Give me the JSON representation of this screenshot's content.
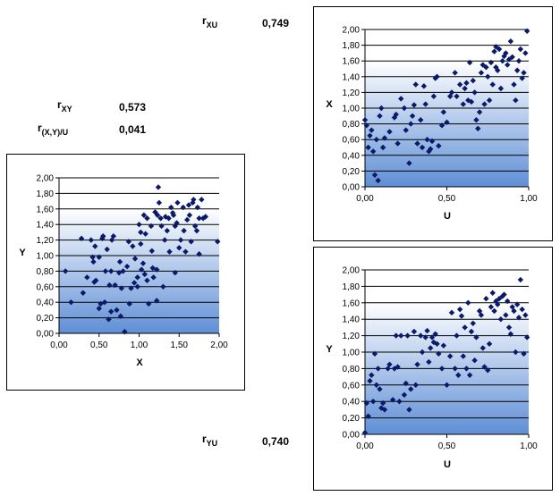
{
  "stats": {
    "rxu": {
      "label_main": "r",
      "label_sub": "XU",
      "value": "0,749"
    },
    "rxy": {
      "label_main": "r",
      "label_sub": "XY",
      "value": "0,573"
    },
    "rxyu": {
      "label_main": "r",
      "label_sub": "(X,Y)/U",
      "value": "0,041"
    },
    "ryu": {
      "label_main": "r",
      "label_sub": "YU",
      "value": "0,740"
    }
  },
  "colors": {
    "marker": "#0a1a6a",
    "grad_top": "#ffffff",
    "grad_bottom": "#5f8fd6"
  },
  "chart_data": [
    {
      "id": "xy",
      "type": "scatter",
      "xlabel": "X",
      "ylabel": "Y",
      "xlim": [
        0,
        2
      ],
      "ylim": [
        0,
        2
      ],
      "xticks": [
        "0,00",
        "0,50",
        "1,00",
        "1,50",
        "2,00"
      ],
      "yticks": [
        "0,00",
        "0,20",
        "0,40",
        "0,60",
        "0,80",
        "1,00",
        "1,20",
        "1,40",
        "1,60",
        "1,80",
        "2,00"
      ],
      "points": [
        [
          0.08,
          0.8
        ],
        [
          0.15,
          0.4
        ],
        [
          0.28,
          1.22
        ],
        [
          0.3,
          0.52
        ],
        [
          0.35,
          0.72
        ],
        [
          0.4,
          1.2
        ],
        [
          0.42,
          0.98
        ],
        [
          0.43,
          0.92
        ],
        [
          0.44,
          0.66
        ],
        [
          0.45,
          1.12
        ],
        [
          0.46,
          0.68
        ],
        [
          0.5,
          0.98
        ],
        [
          0.5,
          0.32
        ],
        [
          0.52,
          0.38
        ],
        [
          0.54,
          1.22
        ],
        [
          0.55,
          1.25
        ],
        [
          0.57,
          0.4
        ],
        [
          0.58,
          0.8
        ],
        [
          0.6,
          1.08
        ],
        [
          0.62,
          0.18
        ],
        [
          0.63,
          0.62
        ],
        [
          0.65,
          0.28
        ],
        [
          0.65,
          0.8
        ],
        [
          0.66,
          1.2
        ],
        [
          0.68,
          1.25
        ],
        [
          0.7,
          0.62
        ],
        [
          0.72,
          0.3
        ],
        [
          0.75,
          0.78
        ],
        [
          0.76,
          0.92
        ],
        [
          0.77,
          0.22
        ],
        [
          0.78,
          0.58
        ],
        [
          0.8,
          0.8
        ],
        [
          0.82,
          0.02
        ],
        [
          0.85,
          0.86
        ],
        [
          0.87,
          1.18
        ],
        [
          0.88,
          0.38
        ],
        [
          0.9,
          0.58
        ],
        [
          0.92,
          1.12
        ],
        [
          0.94,
          0.65
        ],
        [
          0.95,
          0.96
        ],
        [
          0.98,
          0.72
        ],
        [
          0.98,
          0.6
        ],
        [
          1.0,
          1.4
        ],
        [
          1.02,
          1.3
        ],
        [
          1.02,
          1.15
        ],
        [
          1.03,
          0.82
        ],
        [
          1.05,
          0.9
        ],
        [
          1.06,
          1.52
        ],
        [
          1.07,
          0.76
        ],
        [
          1.08,
          1.28
        ],
        [
          1.1,
          1.48
        ],
        [
          1.1,
          0.68
        ],
        [
          1.12,
          0.38
        ],
        [
          1.15,
          1.38
        ],
        [
          1.16,
          1.06
        ],
        [
          1.17,
          0.84
        ],
        [
          1.18,
          0.72
        ],
        [
          1.2,
          1.56
        ],
        [
          1.22,
          0.82
        ],
        [
          1.22,
          0.42
        ],
        [
          1.23,
          1.52
        ],
        [
          1.24,
          1.88
        ],
        [
          1.25,
          1.68
        ],
        [
          1.27,
          1.48
        ],
        [
          1.28,
          1.38
        ],
        [
          1.3,
          0.6
        ],
        [
          1.32,
          1.2
        ],
        [
          1.33,
          1.5
        ],
        [
          1.35,
          1.32
        ],
        [
          1.37,
          1.48
        ],
        [
          1.38,
          1.05
        ],
        [
          1.4,
          1.62
        ],
        [
          1.42,
          1.55
        ],
        [
          1.43,
          1.52
        ],
        [
          1.45,
          1.38
        ],
        [
          1.45,
          0.78
        ],
        [
          1.47,
          1.42
        ],
        [
          1.48,
          1.68
        ],
        [
          1.5,
          1.1
        ],
        [
          1.52,
          1.2
        ],
        [
          1.55,
          1.62
        ],
        [
          1.56,
          1.32
        ],
        [
          1.58,
          1.05
        ],
        [
          1.6,
          1.46
        ],
        [
          1.62,
          1.65
        ],
        [
          1.63,
          1.52
        ],
        [
          1.65,
          1.18
        ],
        [
          1.67,
          1.68
        ],
        [
          1.68,
          1.72
        ],
        [
          1.7,
          1.38
        ],
        [
          1.72,
          1.32
        ],
        [
          1.73,
          1.62
        ],
        [
          1.75,
          1.02
        ],
        [
          1.75,
          1.48
        ],
        [
          1.78,
          1.72
        ],
        [
          1.8,
          1.48
        ],
        [
          1.83,
          1.5
        ],
        [
          1.98,
          1.18
        ]
      ]
    },
    {
      "id": "xu",
      "type": "scatter",
      "xlabel": "U",
      "ylabel": "X",
      "xlim": [
        0,
        1
      ],
      "ylim": [
        0,
        2
      ],
      "xticks": [
        "0,00",
        "0,50",
        "1,00"
      ],
      "yticks": [
        "0,00",
        "0,20",
        "0,40",
        "0,60",
        "0,80",
        "1,00",
        "1,20",
        "1,40",
        "1,60",
        "1,80",
        "2,00"
      ],
      "points": [
        [
          0.0,
          0.85
        ],
        [
          0.01,
          0.78
        ],
        [
          0.02,
          0.5
        ],
        [
          0.03,
          0.65
        ],
        [
          0.04,
          0.72
        ],
        [
          0.05,
          0.45
        ],
        [
          0.06,
          0.15
        ],
        [
          0.07,
          0.6
        ],
        [
          0.08,
          0.08
        ],
        [
          0.09,
          0.9
        ],
        [
          0.1,
          1.0
        ],
        [
          0.11,
          0.5
        ],
        [
          0.12,
          0.62
        ],
        [
          0.15,
          0.7
        ],
        [
          0.18,
          0.88
        ],
        [
          0.19,
          0.92
        ],
        [
          0.2,
          0.55
        ],
        [
          0.22,
          1.12
        ],
        [
          0.24,
          1.0
        ],
        [
          0.25,
          0.72
        ],
        [
          0.27,
          0.3
        ],
        [
          0.28,
          0.8
        ],
        [
          0.29,
          0.9
        ],
        [
          0.3,
          1.04
        ],
        [
          0.31,
          1.3
        ],
        [
          0.32,
          0.55
        ],
        [
          0.34,
          0.85
        ],
        [
          0.35,
          0.5
        ],
        [
          0.36,
          1.28
        ],
        [
          0.37,
          1.05
        ],
        [
          0.38,
          0.6
        ],
        [
          0.39,
          0.45
        ],
        [
          0.4,
          0.48
        ],
        [
          0.41,
          0.58
        ],
        [
          0.42,
          1.15
        ],
        [
          0.43,
          1.38
        ],
        [
          0.44,
          1.4
        ],
        [
          0.45,
          0.52
        ],
        [
          0.47,
          0.78
        ],
        [
          0.48,
          0.95
        ],
        [
          0.5,
          0.82
        ],
        [
          0.52,
          1.15
        ],
        [
          0.53,
          1.2
        ],
        [
          0.55,
          1.45
        ],
        [
          0.56,
          1.15
        ],
        [
          0.58,
          1.3
        ],
        [
          0.6,
          1.05
        ],
        [
          0.61,
          1.25
        ],
        [
          0.62,
          1.32
        ],
        [
          0.63,
          1.1
        ],
        [
          0.64,
          1.58
        ],
        [
          0.65,
          1.08
        ],
        [
          0.66,
          1.35
        ],
        [
          0.67,
          1.2
        ],
        [
          0.68,
          0.85
        ],
        [
          0.69,
          0.74
        ],
        [
          0.7,
          0.95
        ],
        [
          0.71,
          1.45
        ],
        [
          0.72,
          1.55
        ],
        [
          0.73,
          1.05
        ],
        [
          0.74,
          1.52
        ],
        [
          0.75,
          1.4
        ],
        [
          0.76,
          1.1
        ],
        [
          0.77,
          1.58
        ],
        [
          0.78,
          1.3
        ],
        [
          0.79,
          1.72
        ],
        [
          0.8,
          1.78
        ],
        [
          0.8,
          1.52
        ],
        [
          0.81,
          1.48
        ],
        [
          0.82,
          1.75
        ],
        [
          0.83,
          1.25
        ],
        [
          0.84,
          1.6
        ],
        [
          0.85,
          1.66
        ],
        [
          0.86,
          1.7
        ],
        [
          0.87,
          1.55
        ],
        [
          0.88,
          1.62
        ],
        [
          0.89,
          1.85
        ],
        [
          0.9,
          1.65
        ],
        [
          0.91,
          1.3
        ],
        [
          0.92,
          1.1
        ],
        [
          0.93,
          1.48
        ],
        [
          0.94,
          1.6
        ],
        [
          0.95,
          1.75
        ],
        [
          0.96,
          1.38
        ],
        [
          0.97,
          1.45
        ],
        [
          0.98,
          1.7
        ],
        [
          0.99,
          1.98
        ]
      ]
    },
    {
      "id": "yu",
      "type": "scatter",
      "xlabel": "U",
      "ylabel": "Y",
      "xlim": [
        0,
        1
      ],
      "ylim": [
        0,
        2
      ],
      "xticks": [
        "0,00",
        "0,50",
        "1,00"
      ],
      "yticks": [
        "0,00",
        "0,20",
        "0,40",
        "0,60",
        "0,80",
        "1,00",
        "1,20",
        "1,40",
        "1,60",
        "1,80",
        "2,00"
      ],
      "points": [
        [
          0.0,
          0.02
        ],
        [
          0.01,
          0.38
        ],
        [
          0.02,
          0.22
        ],
        [
          0.03,
          0.65
        ],
        [
          0.04,
          0.72
        ],
        [
          0.05,
          0.4
        ],
        [
          0.06,
          0.98
        ],
        [
          0.07,
          0.6
        ],
        [
          0.08,
          0.8
        ],
        [
          0.09,
          0.55
        ],
        [
          0.1,
          0.32
        ],
        [
          0.11,
          0.38
        ],
        [
          0.12,
          0.3
        ],
        [
          0.14,
          0.8
        ],
        [
          0.15,
          0.85
        ],
        [
          0.17,
          0.42
        ],
        [
          0.18,
          0.8
        ],
        [
          0.19,
          1.2
        ],
        [
          0.2,
          0.82
        ],
        [
          0.21,
          0.4
        ],
        [
          0.22,
          1.2
        ],
        [
          0.24,
          0.48
        ],
        [
          0.25,
          0.62
        ],
        [
          0.26,
          1.2
        ],
        [
          0.27,
          0.3
        ],
        [
          0.28,
          0.55
        ],
        [
          0.3,
          1.25
        ],
        [
          0.31,
          0.6
        ],
        [
          0.32,
          0.85
        ],
        [
          0.34,
          1.2
        ],
        [
          0.35,
          1.0
        ],
        [
          0.37,
          1.18
        ],
        [
          0.38,
          1.26
        ],
        [
          0.39,
          0.88
        ],
        [
          0.4,
          1.05
        ],
        [
          0.41,
          1.18
        ],
        [
          0.42,
          1.12
        ],
        [
          0.43,
          1.22
        ],
        [
          0.44,
          1.1
        ],
        [
          0.45,
          0.98
        ],
        [
          0.47,
          0.8
        ],
        [
          0.48,
          1.08
        ],
        [
          0.5,
          0.6
        ],
        [
          0.52,
          0.95
        ],
        [
          0.53,
          1.48
        ],
        [
          0.55,
          0.8
        ],
        [
          0.56,
          1.2
        ],
        [
          0.57,
          0.72
        ],
        [
          0.58,
          1.52
        ],
        [
          0.59,
          1.44
        ],
        [
          0.6,
          0.95
        ],
        [
          0.61,
          1.3
        ],
        [
          0.62,
          0.8
        ],
        [
          0.63,
          1.6
        ],
        [
          0.64,
          0.72
        ],
        [
          0.65,
          1.25
        ],
        [
          0.66,
          1.35
        ],
        [
          0.67,
          0.9
        ],
        [
          0.68,
          1.18
        ],
        [
          0.7,
          1.5
        ],
        [
          0.71,
          1.45
        ],
        [
          0.72,
          1.05
        ],
        [
          0.73,
          0.82
        ],
        [
          0.74,
          1.65
        ],
        [
          0.75,
          0.78
        ],
        [
          0.76,
          1.1
        ],
        [
          0.77,
          1.55
        ],
        [
          0.78,
          1.72
        ],
        [
          0.79,
          1.5
        ],
        [
          0.8,
          1.62
        ],
        [
          0.81,
          1.58
        ],
        [
          0.82,
          1.65
        ],
        [
          0.83,
          1.4
        ],
        [
          0.84,
          1.68
        ],
        [
          0.85,
          1.7
        ],
        [
          0.86,
          1.45
        ],
        [
          0.87,
          1.62
        ],
        [
          0.88,
          1.3
        ],
        [
          0.89,
          1.22
        ],
        [
          0.9,
          1.55
        ],
        [
          0.91,
          1.5
        ],
        [
          0.92,
          1.0
        ],
        [
          0.93,
          1.58
        ],
        [
          0.94,
          1.42
        ],
        [
          0.95,
          1.88
        ],
        [
          0.96,
          1.52
        ],
        [
          0.97,
          0.98
        ],
        [
          0.98,
          1.45
        ],
        [
          0.99,
          1.18
        ]
      ]
    }
  ]
}
